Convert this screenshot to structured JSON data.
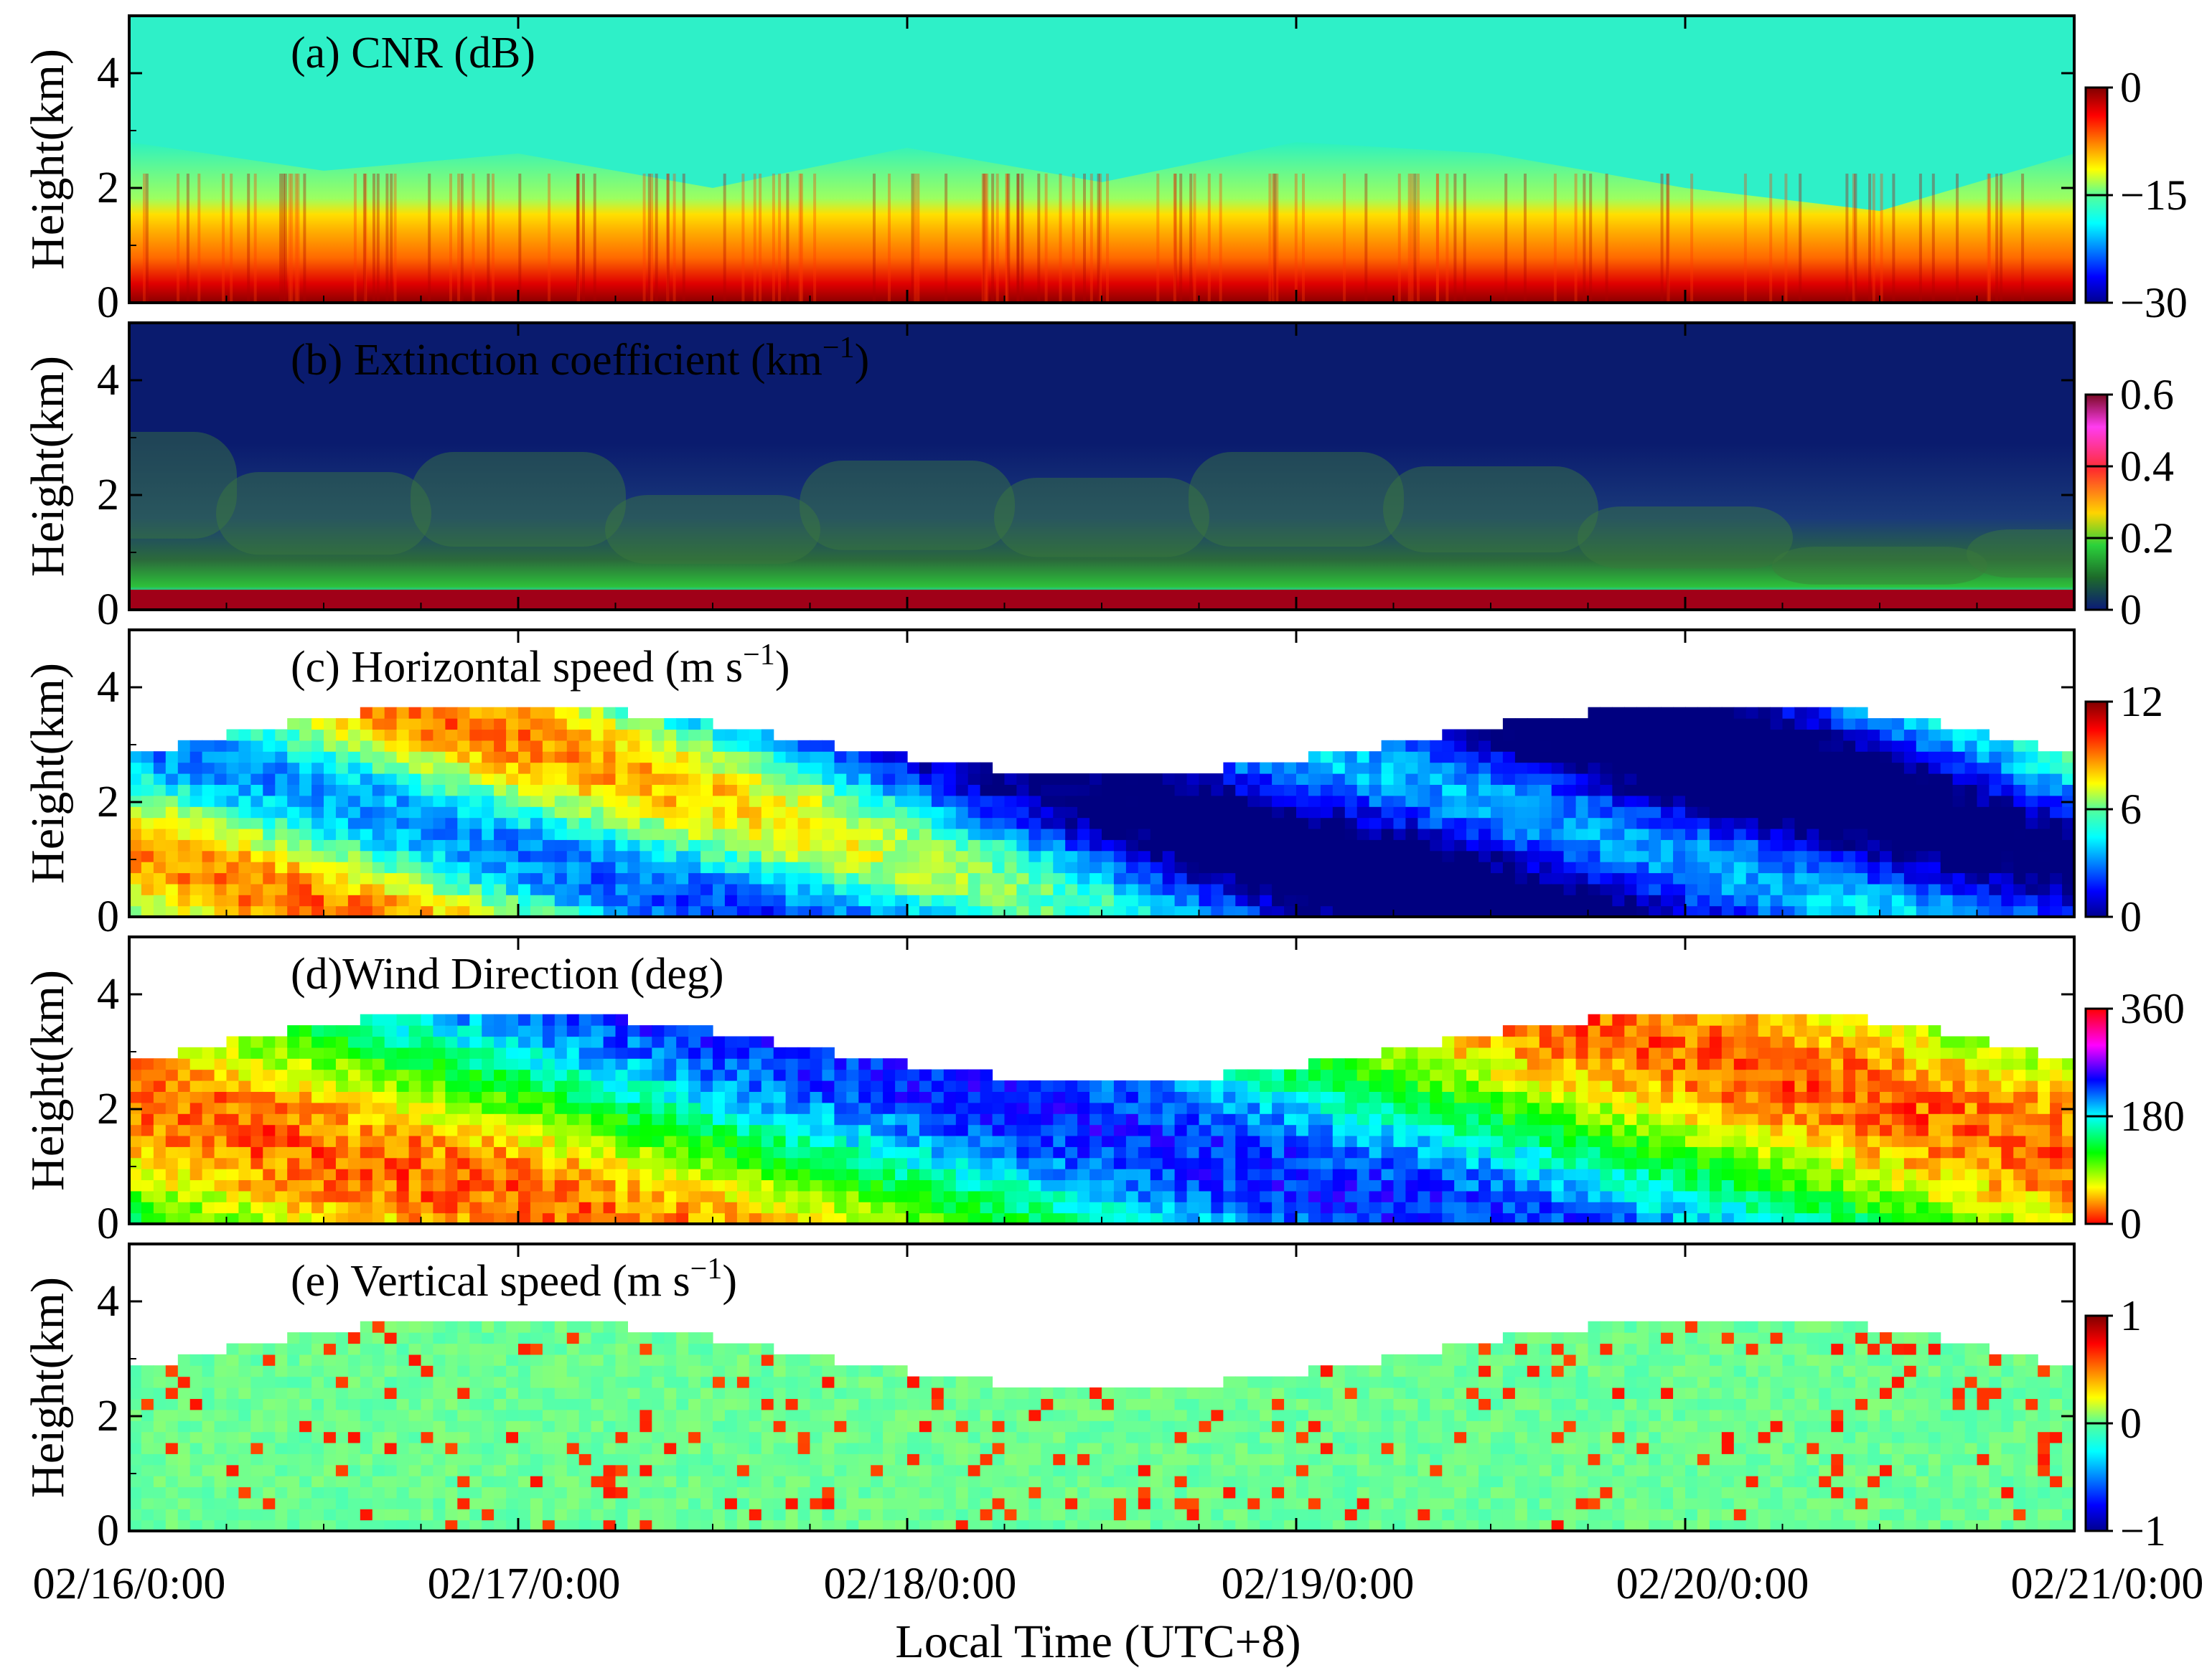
{
  "figure": {
    "x_axis_label": "Local Time (UTC+8)",
    "x_tick_labels": [
      "02/16/0:00",
      "02/17/0:00",
      "02/18/0:00",
      "02/19/0:00",
      "02/20/0:00",
      "02/21/0:00"
    ],
    "y_axis_label": "Height(km)",
    "y_tick_labels": [
      "0",
      "2",
      "4"
    ]
  },
  "chart_data": [
    {
      "type": "heatmap",
      "panel": "a",
      "title": "(a) CNR (dB)",
      "xlabel": "Local Time (UTC+8)",
      "ylabel": "Height(km)",
      "x_range_days": [
        0,
        5
      ],
      "ylim": [
        0,
        5
      ],
      "colorbar": {
        "min": -30,
        "max": 0,
        "ticks": [
          "0",
          "−15",
          "−30"
        ],
        "colormap": "jet"
      },
      "description_layers": [
        {
          "name": "boundary_layer_top_km",
          "x_days": [
            0,
            0.5,
            1,
            1.5,
            2,
            2.5,
            3,
            3.5,
            4,
            4.5,
            5
          ],
          "values": [
            2.8,
            2.3,
            2.6,
            2.0,
            2.7,
            2.1,
            2.8,
            2.6,
            2.0,
            1.6,
            2.6
          ]
        }
      ]
    },
    {
      "type": "heatmap",
      "panel": "b",
      "title": "(b) Extinction coefficient (km",
      "title_sup": "−1",
      "title_end": ")",
      "xlabel": "Local Time (UTC+8)",
      "ylabel": "Height(km)",
      "x_range_days": [
        0,
        5
      ],
      "ylim": [
        0,
        5
      ],
      "colorbar": {
        "min": 0,
        "max": 0.6,
        "ticks": [
          "0.6",
          "0.4",
          "0.2",
          "0"
        ],
        "colormap": "parula-magenta"
      }
    },
    {
      "type": "heatmap",
      "panel": "c",
      "title": "(c) Horizontal speed (m s",
      "title_sup": "−1",
      "title_end": ")",
      "xlabel": "Local Time (UTC+8)",
      "ylabel": "Height(km)",
      "x_range_days": [
        0,
        5
      ],
      "ylim": [
        0,
        5
      ],
      "colorbar": {
        "min": 0,
        "max": 12,
        "ticks": [
          "12",
          "6",
          "0"
        ],
        "colormap": "jet"
      }
    },
    {
      "type": "heatmap",
      "panel": "d",
      "title": "(d)Wind Direction (deg)",
      "xlabel": "Local Time (UTC+8)",
      "ylabel": "Height(km)",
      "x_range_days": [
        0,
        5
      ],
      "ylim": [
        0,
        5
      ],
      "colorbar": {
        "min": 0,
        "max": 360,
        "ticks": [
          "360",
          "180",
          "0"
        ],
        "colormap": "hsv"
      }
    },
    {
      "type": "heatmap",
      "panel": "e",
      "title": "(e) Vertical speed (m s",
      "title_sup": "−1",
      "title_end": ")",
      "xlabel": "Local Time (UTC+8)",
      "ylabel": "Height(km)",
      "x_range_days": [
        0,
        5
      ],
      "ylim": [
        0,
        5
      ],
      "colorbar": {
        "min": -1,
        "max": 1,
        "ticks": [
          "1",
          "0",
          "−1"
        ],
        "colormap": "jet"
      }
    }
  ]
}
